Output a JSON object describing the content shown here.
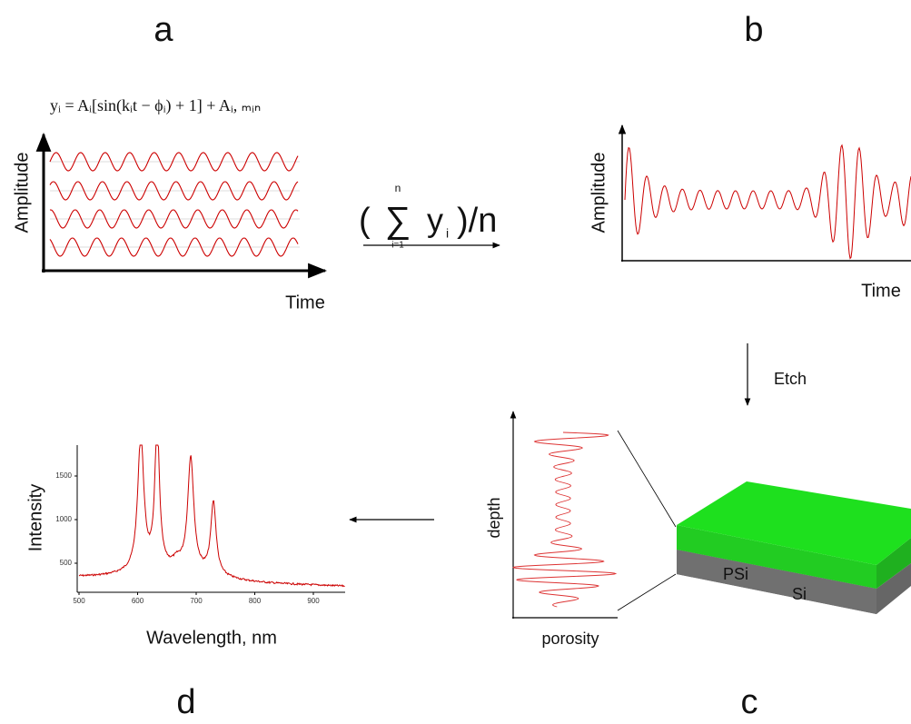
{
  "panels": {
    "a": {
      "label": "a",
      "formula": "yᵢ = Aᵢ[sin(kᵢt − ϕᵢ) + 1] + Aᵢ, ₘᵢₙ",
      "y_axis": "Amplitude",
      "x_axis": "Time"
    },
    "operation": {
      "open": "(",
      "sigma": "∑",
      "upper": "n",
      "lower": "i=1",
      "term": "y",
      "term_sub": "i",
      "close": ")/n"
    },
    "b": {
      "label": "b",
      "y_axis": "Amplitude",
      "x_axis": "Time"
    },
    "etch": "Etch",
    "c": {
      "label": "c",
      "y_axis": "depth",
      "x_axis": "porosity",
      "layer_top": "PSi",
      "layer_bottom": "Si"
    },
    "d": {
      "label": "d",
      "y_axis": "Intensity",
      "x_axis": "Wavelength, nm",
      "yticks": [
        500,
        1000,
        1500
      ],
      "xticks": [
        500,
        600,
        700,
        800,
        900
      ]
    }
  }
}
